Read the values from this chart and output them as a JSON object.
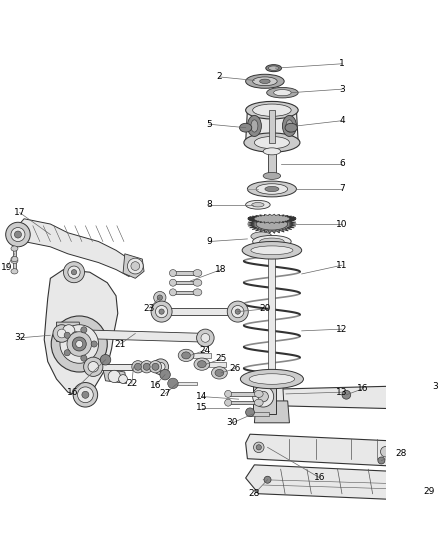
{
  "bg_color": "#ffffff",
  "fig_width": 4.38,
  "fig_height": 5.33,
  "dpi": 100,
  "lc": "#555555",
  "lc_dark": "#333333",
  "fc_light": "#e8e8e8",
  "fc_mid": "#cccccc",
  "fc_dark": "#aaaaaa",
  "fc_vdark": "#888888",
  "label_fs": 6.5,
  "leader_lw": 0.5,
  "leader_color": "#666666"
}
